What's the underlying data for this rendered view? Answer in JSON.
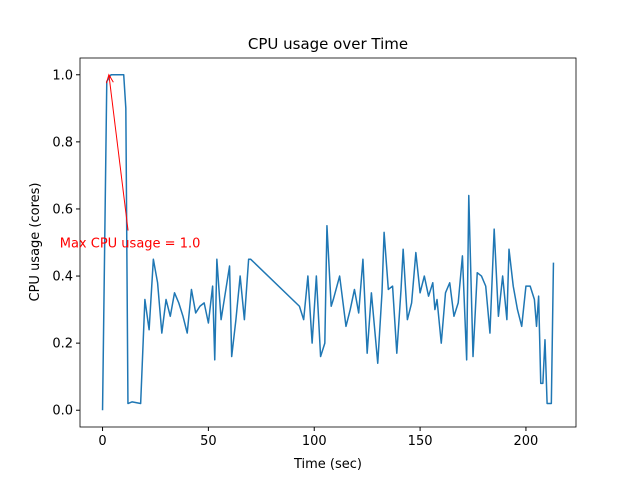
{
  "chart_data": {
    "type": "line",
    "title": "CPU usage over Time",
    "xlabel": "Time (sec)",
    "ylabel": "CPU usage (cores)",
    "x": [
      0,
      2,
      4,
      6,
      10,
      11,
      12,
      14,
      18,
      20,
      22,
      24,
      26,
      28,
      30,
      32,
      34,
      36,
      38,
      40,
      42,
      44,
      46,
      48,
      50,
      52,
      53,
      54,
      56,
      58,
      60,
      61,
      63,
      65,
      67,
      69,
      70,
      93,
      95,
      97,
      99,
      101,
      103,
      105,
      106,
      108,
      109,
      112,
      115,
      117,
      119,
      121,
      123,
      125,
      127,
      130,
      132,
      133,
      135,
      137,
      139,
      141,
      142,
      144,
      146,
      148,
      150,
      152,
      154,
      156,
      157,
      158,
      160,
      162,
      164,
      166,
      168,
      170,
      172,
      173,
      175,
      177,
      179,
      181,
      183,
      185,
      187,
      189,
      191,
      192,
      194,
      196,
      198,
      200,
      202,
      204,
      205,
      206,
      207,
      208,
      209,
      210,
      212,
      213
    ],
    "series": [
      {
        "name": "CPU usage",
        "color": "#1f77b4",
        "values": [
          0,
          0.98,
          1.0,
          1.0,
          1.0,
          0.9,
          0.02,
          0.025,
          0.02,
          0.33,
          0.24,
          0.45,
          0.38,
          0.23,
          0.33,
          0.28,
          0.35,
          0.32,
          0.28,
          0.23,
          0.36,
          0.29,
          0.31,
          0.32,
          0.26,
          0.37,
          0.15,
          0.45,
          0.27,
          0.35,
          0.43,
          0.16,
          0.27,
          0.4,
          0.27,
          0.45,
          0.45,
          0.31,
          0.27,
          0.4,
          0.2,
          0.4,
          0.16,
          0.2,
          0.55,
          0.31,
          0.33,
          0.4,
          0.25,
          0.3,
          0.36,
          0.29,
          0.45,
          0.17,
          0.35,
          0.14,
          0.35,
          0.53,
          0.36,
          0.37,
          0.17,
          0.36,
          0.48,
          0.27,
          0.32,
          0.47,
          0.35,
          0.4,
          0.34,
          0.38,
          0.3,
          0.33,
          0.2,
          0.35,
          0.38,
          0.28,
          0.32,
          0.46,
          0.15,
          0.64,
          0.16,
          0.41,
          0.4,
          0.37,
          0.23,
          0.54,
          0.28,
          0.4,
          0.27,
          0.48,
          0.37,
          0.3,
          0.25,
          0.37,
          0.37,
          0.33,
          0.25,
          0.34,
          0.08,
          0.08,
          0.21,
          0.02,
          0.02,
          0.44
        ]
      }
    ],
    "xlim": [
      -10.65,
      223.65
    ],
    "xticks": [
      0,
      50,
      100,
      150,
      200
    ],
    "ylim": [
      -0.05,
      1.05
    ],
    "yticks": [
      {
        "value": 0,
        "label": "0.0"
      },
      0.2,
      0.4,
      0.6,
      0.8,
      {
        "value": 1,
        "label": "1.0"
      }
    ],
    "annotation": {
      "text": "Max CPU usage = 1.0",
      "xy": [
        3,
        1.0
      ],
      "xytext": [
        13,
        0.5
      ],
      "color": "red"
    }
  }
}
